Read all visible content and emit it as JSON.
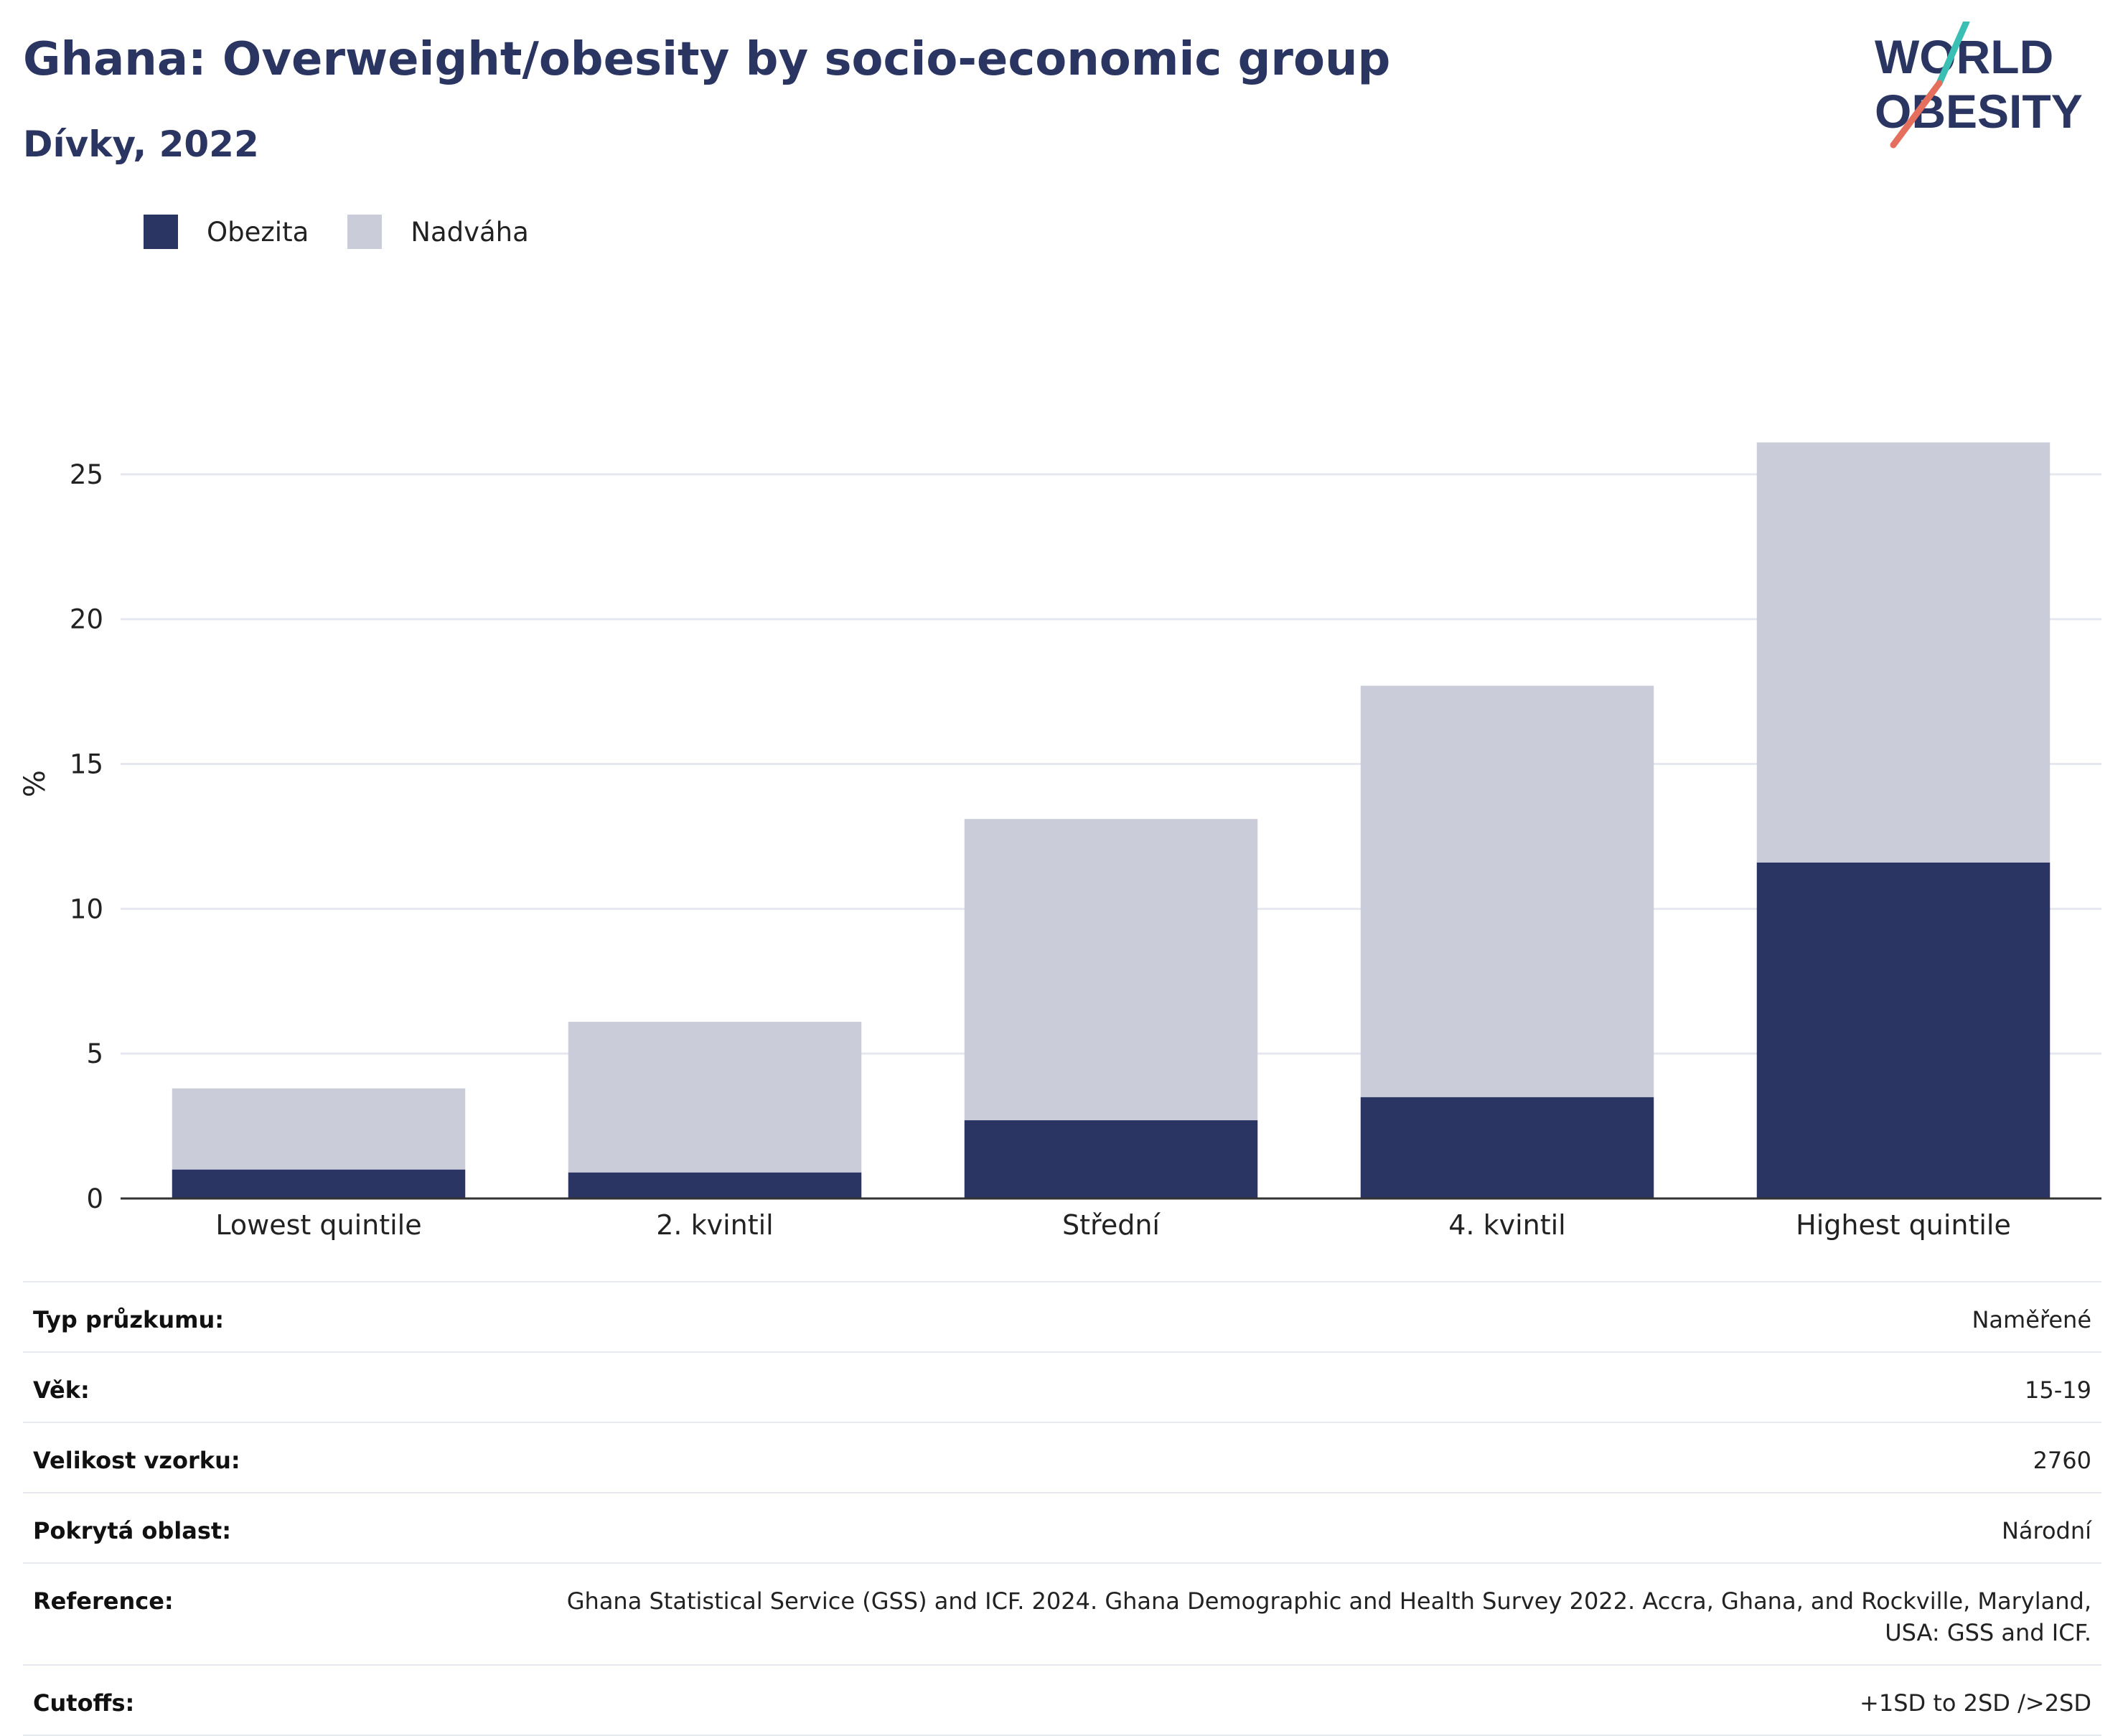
{
  "header": {
    "title": "Ghana: Overweight/obesity by socio-economic group",
    "subtitle": "Dívky, 2022"
  },
  "logo": {
    "line1": "WORLD",
    "line2": "OBESITY"
  },
  "colors": {
    "obesity": "#2a3563",
    "overweight": "#cacdd9",
    "title": "#2b3562",
    "grid": "#e6e8ef",
    "axis": "#333333"
  },
  "legend": [
    {
      "label": "Obezita",
      "color": "#2a3563"
    },
    {
      "label": "Nadváha",
      "color": "#cacdd9"
    }
  ],
  "chart_data": {
    "type": "bar",
    "stacked": true,
    "categories": [
      "Lowest quintile",
      "2. kvintil",
      "Střední",
      "4. kvintil",
      "Highest quintile"
    ],
    "series": [
      {
        "name": "Obezita",
        "values": [
          1.0,
          0.9,
          2.7,
          3.5,
          11.6
        ]
      },
      {
        "name": "Nadváha",
        "values": [
          2.8,
          5.2,
          10.4,
          14.2,
          14.5
        ]
      }
    ],
    "ylabel": "%",
    "xlabel": "",
    "ylim": [
      0,
      27.5
    ],
    "yticks": [
      0,
      5,
      10,
      15,
      20,
      25
    ],
    "grid": true,
    "legend_position": "top-left"
  },
  "metadata": [
    {
      "key": "Typ průzkumu:",
      "value": "Naměřené"
    },
    {
      "key": "Věk:",
      "value": "15-19"
    },
    {
      "key": "Velikost vzorku:",
      "value": "2760"
    },
    {
      "key": "Pokrytá oblast:",
      "value": "Národní"
    },
    {
      "key": "Reference:",
      "value": "Ghana Statistical Service (GSS) and ICF. 2024. Ghana Demographic and Health Survey 2022. Accra, Ghana, and Rockville, Maryland, USA: GSS and ICF."
    },
    {
      "key": "Cutoffs:",
      "value": "+1SD to 2SD />2SD"
    }
  ]
}
